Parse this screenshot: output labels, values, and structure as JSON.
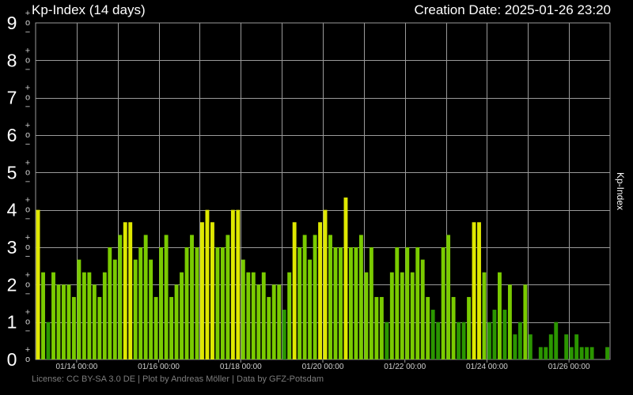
{
  "header": {
    "title": "Kp-Index (14 days)",
    "creation_date": "Creation Date: 2025-01-26 23:20"
  },
  "footer": "License: CC BY-SA 3.0 DE | Plot by Andreas Möller | Data by GFZ-Potsdam",
  "colors": {
    "background": "#000000",
    "grid": "#9a9a9a",
    "low": "#2b9600",
    "mid": "#7acb00",
    "high": "#dfe800"
  },
  "chart_data": {
    "type": "bar",
    "title": "Kp-Index (14 days)",
    "ylabel": "Kp-Index",
    "ylim": [
      0,
      9
    ],
    "bar_interval_hours": 3,
    "y_ticks": [
      "0",
      "1",
      "2",
      "3",
      "4",
      "5",
      "6",
      "7",
      "8",
      "9"
    ],
    "y_minor_labels": [
      "−",
      "o",
      "+"
    ],
    "x_tick_labels": [
      "01/14 00:00",
      "01/16 00:00",
      "01/18 00:00",
      "01/20 00:00",
      "01/22 00:00",
      "01/24 00:00",
      "01/26 00:00"
    ],
    "grid": true,
    "values": [
      4.0,
      2.33,
      1.0,
      2.33,
      2.0,
      2.0,
      2.0,
      1.67,
      2.67,
      2.33,
      2.33,
      2.0,
      1.67,
      2.33,
      3.0,
      2.67,
      3.33,
      3.67,
      3.67,
      2.67,
      3.0,
      3.33,
      2.67,
      1.67,
      3.0,
      3.33,
      1.67,
      2.0,
      2.33,
      3.0,
      3.33,
      3.0,
      3.67,
      4.0,
      3.67,
      3.0,
      3.0,
      3.33,
      4.0,
      4.0,
      2.67,
      2.33,
      2.33,
      2.0,
      2.33,
      1.67,
      2.0,
      2.0,
      1.33,
      2.33,
      3.67,
      3.0,
      3.33,
      2.67,
      3.33,
      3.67,
      4.0,
      3.33,
      3.0,
      3.0,
      4.33,
      3.0,
      3.0,
      3.33,
      2.33,
      3.0,
      1.67,
      1.67,
      1.0,
      2.33,
      3.0,
      2.33,
      3.0,
      2.33,
      3.0,
      2.67,
      1.67,
      1.33,
      1.0,
      3.0,
      3.33,
      1.67,
      1.0,
      1.0,
      1.67,
      3.67,
      3.67,
      2.33,
      1.0,
      1.33,
      2.33,
      1.33,
      2.0,
      0.67,
      1.0,
      2.0,
      0.67,
      0.0,
      0.33,
      0.33,
      0.67,
      1.0,
      0.0,
      0.67,
      0.33,
      0.67,
      0.33,
      0.33,
      0.33,
      0.0,
      0.0,
      0.33
    ]
  }
}
